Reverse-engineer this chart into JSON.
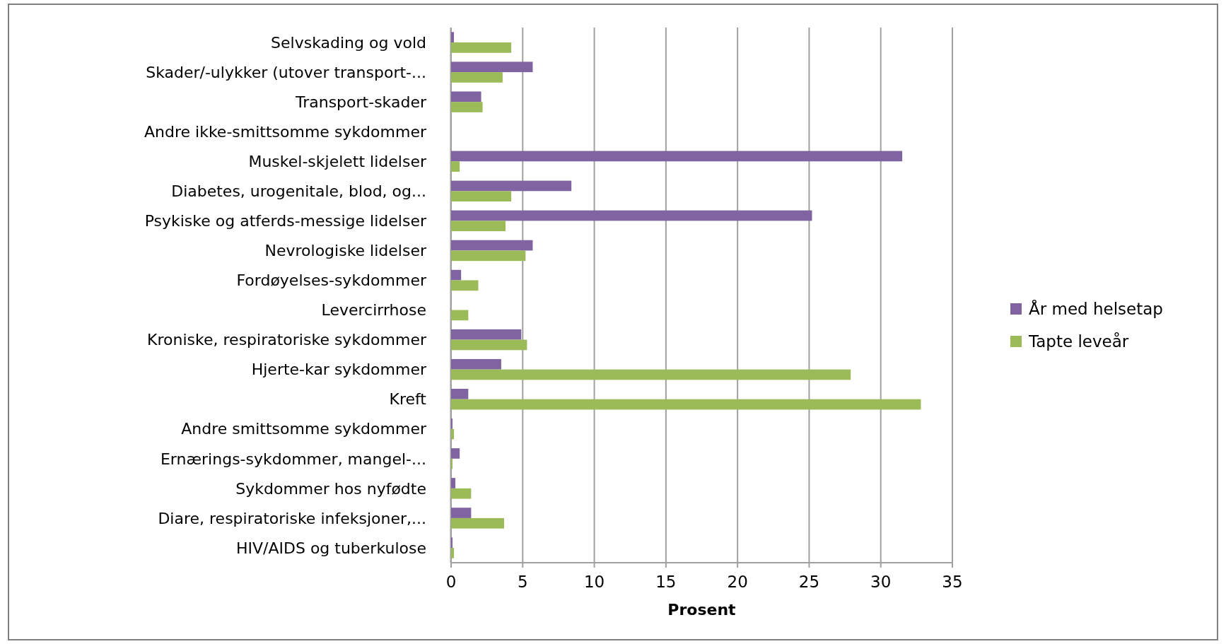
{
  "chart_data": {
    "type": "bar",
    "orientation": "horizontal",
    "xlabel": "Prosent",
    "categories": [
      "Selvskading og vold",
      "Skader/-ulykker (utover transport-...",
      "Transport-skader",
      "Andre ikke-smittsomme sykdommer",
      "Muskel-skjelett lidelser",
      "Diabetes, urogenitale, blod, og...",
      "Psykiske og atferds-messige lidelser",
      "Nevrologiske lidelser",
      "Fordøyelses-sykdommer",
      "Levercirrhose",
      "Kroniske, respiratoriske sykdommer",
      "Hjerte-kar sykdommer",
      "Kreft",
      "Andre smittsomme sykdommer",
      "Ernærings-sykdommer, mangel-...",
      "Sykdommer hos nyfødte",
      "Diare, respiratoriske infeksjoner,...",
      "HIV/AIDS og tuberkulose"
    ],
    "series": [
      {
        "name": "År med helsetap",
        "color": "#8064a2",
        "values": [
          0.2,
          5.7,
          2.1,
          null,
          31.5,
          8.4,
          25.2,
          5.7,
          0.7,
          null,
          4.9,
          3.5,
          1.2,
          0.1,
          0.6,
          0.3,
          1.4,
          0.1
        ]
      },
      {
        "name": "Tapte leveår",
        "color": "#9bbb59",
        "values": [
          4.2,
          3.6,
          2.2,
          null,
          0.6,
          4.2,
          3.8,
          5.2,
          1.9,
          1.2,
          5.3,
          27.9,
          32.8,
          0.2,
          0.1,
          1.4,
          3.7,
          0.2
        ]
      }
    ],
    "xlim": [
      0,
      35
    ],
    "xticks": [
      0,
      5,
      10,
      15,
      20,
      25,
      30,
      35
    ],
    "grid": "x",
    "legend": "right"
  }
}
